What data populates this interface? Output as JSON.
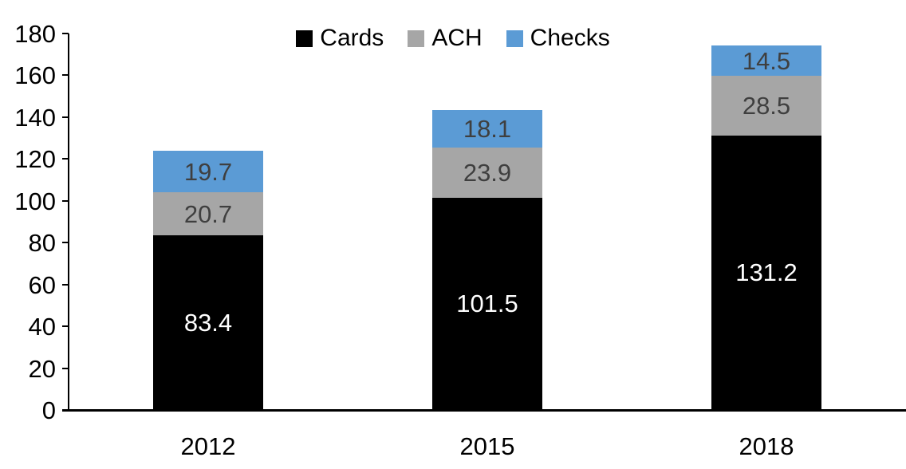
{
  "chart_data": {
    "type": "bar",
    "stacked": true,
    "title": "",
    "xlabel": "",
    "ylabel": "",
    "categories": [
      "2012",
      "2015",
      "2018"
    ],
    "series": [
      {
        "name": "Cards",
        "color": "#000000",
        "label_color": "#FFFFFF",
        "values": [
          83.4,
          101.5,
          131.2
        ]
      },
      {
        "name": "ACH",
        "color": "#A6A6A6",
        "label_color": "#3F3F3F",
        "values": [
          20.7,
          23.9,
          28.5
        ]
      },
      {
        "name": "Checks",
        "color": "#5B9BD5",
        "label_color": "#3F3F3F",
        "values": [
          19.7,
          18.1,
          14.5
        ]
      }
    ],
    "ylim": [
      0,
      180
    ],
    "ytick_step": 20,
    "yticks": [
      0,
      20,
      40,
      60,
      80,
      100,
      120,
      140,
      160,
      180
    ],
    "grid": false,
    "legend_position": "top-center",
    "value_label_decimals": 1
  },
  "colors": {
    "background": "#FFFFFF",
    "axis": "#000000",
    "tick_text": "#000000",
    "cards": "#000000",
    "ach": "#A6A6A6",
    "checks": "#5B9BD5",
    "label_on_dark": "#FFFFFF",
    "label_on_light": "#3F3F3F"
  }
}
